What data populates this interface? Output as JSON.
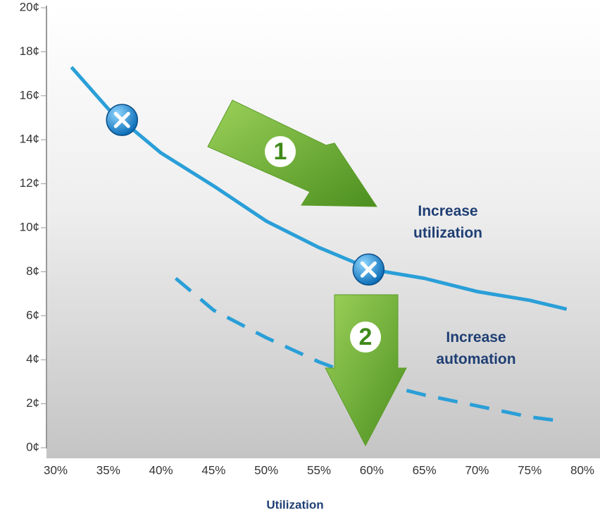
{
  "chart_data": {
    "type": "line",
    "xlabel": "Utilization",
    "xlim": [
      30,
      80
    ],
    "ylim": [
      0,
      20
    ],
    "xticks": [
      {
        "value": 30,
        "label": "30%"
      },
      {
        "value": 35,
        "label": "35%"
      },
      {
        "value": 40,
        "label": "40%"
      },
      {
        "value": 45,
        "label": "45%"
      },
      {
        "value": 50,
        "label": "50%"
      },
      {
        "value": 55,
        "label": "55%"
      },
      {
        "value": 60,
        "label": "60%"
      },
      {
        "value": 65,
        "label": "65%"
      },
      {
        "value": 70,
        "label": "70%"
      },
      {
        "value": 75,
        "label": "75%"
      },
      {
        "value": 80,
        "label": "80%"
      }
    ],
    "yticks": [
      {
        "value": 0,
        "label": "0¢"
      },
      {
        "value": 2,
        "label": "2¢"
      },
      {
        "value": 4,
        "label": "4¢"
      },
      {
        "value": 6,
        "label": "6¢"
      },
      {
        "value": 8,
        "label": "8¢"
      },
      {
        "value": 10,
        "label": "10¢"
      },
      {
        "value": 12,
        "label": "12¢"
      },
      {
        "value": 14,
        "label": "14¢"
      },
      {
        "value": 16,
        "label": "16¢"
      },
      {
        "value": 18,
        "label": "18¢"
      },
      {
        "value": 20,
        "label": "20¢"
      }
    ],
    "series": [
      {
        "color": "#2a9fd8",
        "style": "solid",
        "x": [
          31.5,
          35,
          40,
          45,
          50,
          55,
          60,
          65,
          70,
          75,
          78.5
        ],
        "values": [
          17.3,
          15.4,
          13.4,
          11.9,
          10.3,
          9.1,
          8.1,
          7.7,
          7.1,
          6.7,
          6.3
        ]
      },
      {
        "color": "#2a9fd8",
        "style": "dashed",
        "x": [
          41.4,
          45,
          50,
          55,
          60,
          65,
          70,
          75,
          78.2
        ],
        "values": [
          7.7,
          6.25,
          5.0,
          3.9,
          3.0,
          2.4,
          1.9,
          1.4,
          1.2
        ]
      },
      {
        "color": "#1f88d0",
        "style": "markers",
        "x": [
          36.3,
          59.7
        ],
        "values": [
          14.9,
          8.1
        ]
      }
    ],
    "annotations": [
      "1",
      "Increase utilization",
      "2",
      "Increase automation"
    ]
  }
}
